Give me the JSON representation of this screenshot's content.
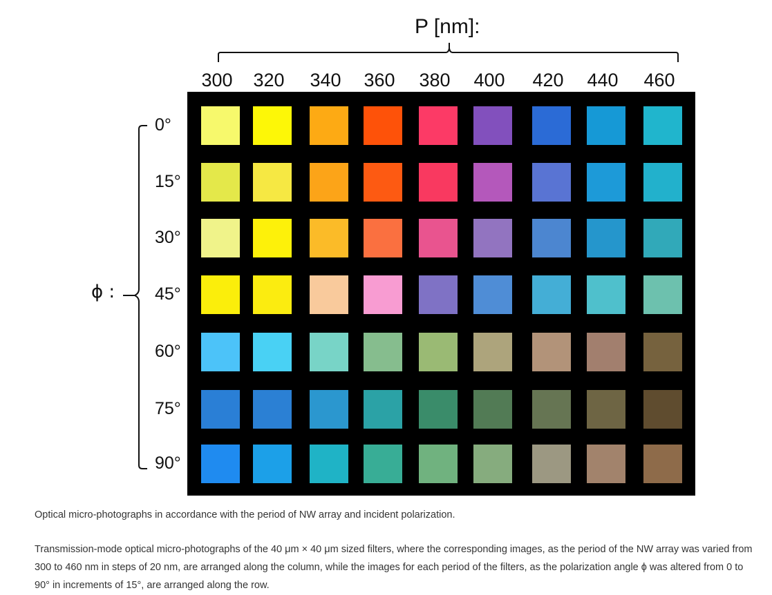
{
  "figure": {
    "column_axis_title": "P [nm]:",
    "row_axis_title": "ϕ :",
    "columns": [
      "300",
      "320",
      "340",
      "360",
      "380",
      "400",
      "420",
      "440",
      "460"
    ],
    "rows": [
      {
        "label": "0°",
        "colors": [
          "#f7f96c",
          "#fdf707",
          "#fdaa14",
          "#fe5209",
          "#fc3a66",
          "#8250bd",
          "#2b6bd6",
          "#1699d6",
          "#20b5cd"
        ]
      },
      {
        "label": "15°",
        "colors": [
          "#e4e84a",
          "#f6e843",
          "#fca418",
          "#fd5a12",
          "#f93960",
          "#b458bb",
          "#5974d3",
          "#1d9ad8",
          "#22b1cc"
        ]
      },
      {
        "label": "30°",
        "colors": [
          "#f0f38a",
          "#fdf10a",
          "#fbbb28",
          "#fa7040",
          "#e9548f",
          "#9274c0",
          "#4c86d0",
          "#2596cc",
          "#31a9b9"
        ]
      },
      {
        "label": "45°",
        "colors": [
          "#fbee0b",
          "#fbec10",
          "#f9ca9c",
          "#f89cd2",
          "#7f72c5",
          "#4f8dd6",
          "#44aed6",
          "#4fc0cc",
          "#6dc1ae"
        ]
      },
      {
        "label": "60°",
        "colors": [
          "#4cc3f9",
          "#49d1f4",
          "#78d4c7",
          "#86bd8e",
          "#9aba74",
          "#ada47c",
          "#b29379",
          "#a27f6e",
          "#76623e"
        ]
      },
      {
        "label": "75°",
        "colors": [
          "#2a7fd6",
          "#2b80d4",
          "#2b97cf",
          "#2ba2a6",
          "#3a8c6a",
          "#527b55",
          "#667553",
          "#6e6544",
          "#5f4c2f"
        ]
      },
      {
        "label": "90°",
        "colors": [
          "#1f8bf0",
          "#1ca0e8",
          "#1fb3c6",
          "#38ad96",
          "#70b27f",
          "#86ac7e",
          "#9c9882",
          "#a2836c",
          "#8e6b4a"
        ]
      }
    ]
  },
  "caption": {
    "title": "Optical micro-photographs in accordance with the period of NW array and incident polarization.",
    "body": "Transmission-mode optical micro-photographs of the 40 μm × 40 μm sized filters, where the corresponding images, as the period of the NW array was varied from 300 to 460 nm in steps of 20 nm, are arranged along the column, while the images for each period of the filters, as the polarization angle ϕ was altered from 0 to 90° in increments of 15°, are arranged along the row."
  }
}
